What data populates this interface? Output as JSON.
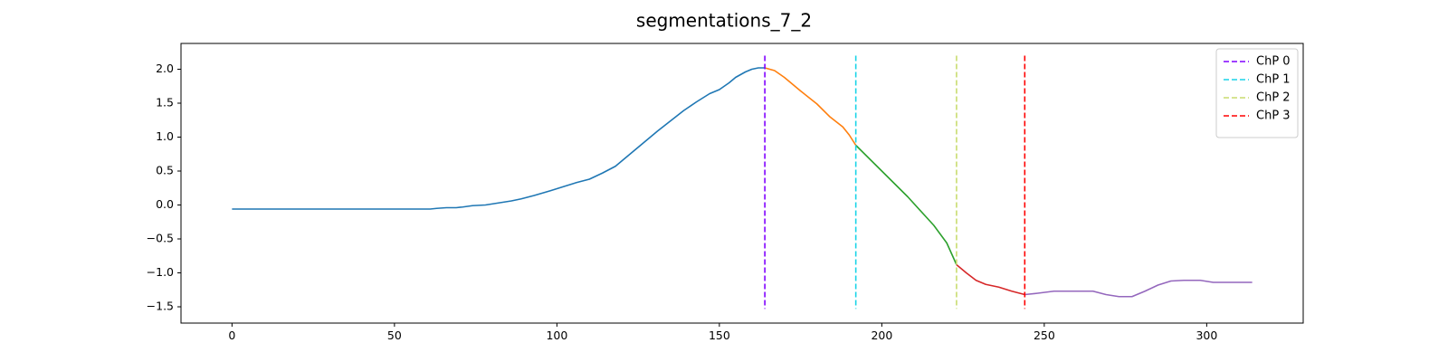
{
  "chart_data": {
    "type": "line",
    "title": "segmentations_7_2",
    "xlabel": "",
    "ylabel": "",
    "xlim": [
      -15.7,
      329.7
    ],
    "ylim": [
      -1.74,
      2.38
    ],
    "xticks": [
      0,
      50,
      100,
      150,
      200,
      250,
      300
    ],
    "yticks": [
      -1.5,
      -1.0,
      -0.5,
      0.0,
      0.5,
      1.0,
      1.5,
      2.0
    ],
    "ytick_labels": [
      "−1.5",
      "−1.0",
      "−0.5",
      "0.0",
      "0.5",
      "1.0",
      "1.5",
      "2.0"
    ],
    "grid": false,
    "legend_position": "top-right",
    "series": [
      {
        "color": "#1f77b4",
        "points": [
          [
            0,
            -0.06
          ],
          [
            10,
            -0.06
          ],
          [
            30,
            -0.06
          ],
          [
            50,
            -0.06
          ],
          [
            61,
            -0.06
          ],
          [
            63,
            -0.05
          ],
          [
            66,
            -0.04
          ],
          [
            69,
            -0.04
          ],
          [
            71,
            -0.03
          ],
          [
            74,
            -0.01
          ],
          [
            78,
            0.0
          ],
          [
            82,
            0.03
          ],
          [
            86,
            0.06
          ],
          [
            89,
            0.09
          ],
          [
            93,
            0.14
          ],
          [
            98,
            0.21
          ],
          [
            102,
            0.27
          ],
          [
            106,
            0.33
          ],
          [
            110,
            0.38
          ],
          [
            114,
            0.47
          ],
          [
            118,
            0.57
          ],
          [
            122,
            0.73
          ],
          [
            126,
            0.89
          ],
          [
            131,
            1.09
          ],
          [
            135,
            1.24
          ],
          [
            139,
            1.39
          ],
          [
            143,
            1.52
          ],
          [
            147,
            1.64
          ],
          [
            150,
            1.7
          ],
          [
            153,
            1.8
          ],
          [
            155,
            1.88
          ],
          [
            158,
            1.96
          ],
          [
            160,
            2.0
          ],
          [
            162,
            2.02
          ],
          [
            164,
            2.02
          ]
        ]
      },
      {
        "color": "#ff7f0e",
        "points": [
          [
            164,
            2.02
          ],
          [
            167,
            1.98
          ],
          [
            170,
            1.88
          ],
          [
            175,
            1.68
          ],
          [
            180,
            1.49
          ],
          [
            184,
            1.3
          ],
          [
            188,
            1.15
          ],
          [
            190,
            1.03
          ],
          [
            192,
            0.88
          ]
        ]
      },
      {
        "color": "#2ca02c",
        "points": [
          [
            192,
            0.88
          ],
          [
            200,
            0.5
          ],
          [
            208,
            0.12
          ],
          [
            216,
            -0.3
          ],
          [
            220,
            -0.56
          ],
          [
            223,
            -0.88
          ]
        ]
      },
      {
        "color": "#d62728",
        "points": [
          [
            223,
            -0.88
          ],
          [
            226,
            -1.0
          ],
          [
            229,
            -1.11
          ],
          [
            232,
            -1.17
          ],
          [
            236,
            -1.21
          ],
          [
            240,
            -1.27
          ],
          [
            244,
            -1.32
          ]
        ]
      },
      {
        "color": "#9467bd",
        "points": [
          [
            244,
            -1.32
          ],
          [
            248,
            -1.3
          ],
          [
            253,
            -1.27
          ],
          [
            258,
            -1.27
          ],
          [
            262,
            -1.27
          ],
          [
            265,
            -1.27
          ],
          [
            269,
            -1.32
          ],
          [
            273,
            -1.35
          ],
          [
            277,
            -1.35
          ],
          [
            281,
            -1.27
          ],
          [
            285,
            -1.18
          ],
          [
            289,
            -1.12
          ],
          [
            293,
            -1.11
          ],
          [
            298,
            -1.11
          ],
          [
            302,
            -1.14
          ],
          [
            307,
            -1.14
          ],
          [
            310,
            -1.14
          ],
          [
            314,
            -1.14
          ]
        ]
      }
    ],
    "changepoints": [
      {
        "name": "ChP 0",
        "x": 164,
        "color": "#8000ff"
      },
      {
        "name": "ChP 1",
        "x": 192,
        "color": "#1ad4e8"
      },
      {
        "name": "ChP 2",
        "x": 223,
        "color": "#c9dc6f"
      },
      {
        "name": "ChP 3",
        "x": 244,
        "color": "#ff0000"
      }
    ],
    "changepoint_span": [
      -1.53,
      2.2
    ]
  }
}
